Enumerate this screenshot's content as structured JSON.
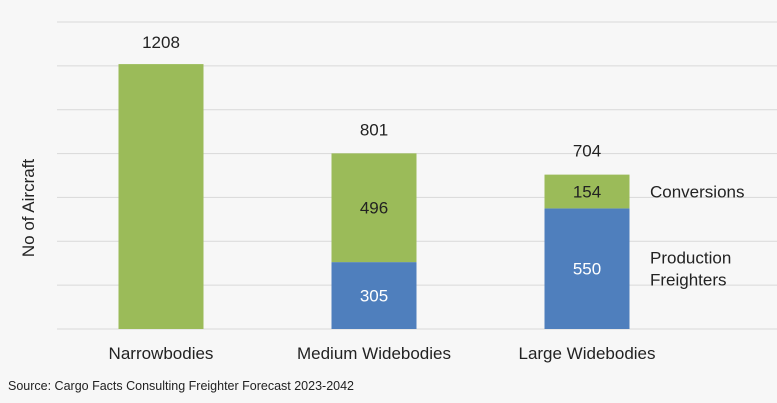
{
  "chart_data": {
    "type": "bar",
    "stacked": true,
    "categories": [
      "Narrowbodies",
      "Medium Widebodies",
      "Large Widebodies"
    ],
    "series": [
      {
        "name": "Production Freighters",
        "values": [
          0,
          305,
          550
        ],
        "color": "#4f7fbd"
      },
      {
        "name": "Conversions",
        "values": [
          1208,
          496,
          154
        ],
        "color": "#9bbb59"
      }
    ],
    "segment_labels": [
      [
        "",
        "1208"
      ],
      [
        "305",
        "496"
      ],
      [
        "550",
        "154"
      ]
    ],
    "totals": [
      "1208",
      "801",
      "704"
    ],
    "show_total": [
      false,
      true,
      true
    ],
    "ylabel": "No of Aircraft",
    "ylim": [
      0,
      1400
    ],
    "grid": true,
    "legend": "inline-right",
    "series_label_lines": {
      "Conversions": [
        "Conversions"
      ],
      "Production Freighters": [
        "Production",
        "Freighters"
      ]
    }
  },
  "source_text": "Source: Cargo Facts Consulting Freighter Forecast 2023-2042",
  "colors": {
    "background": "#f7f7f7",
    "grid": "#d9d9d9",
    "text": "#404040"
  }
}
